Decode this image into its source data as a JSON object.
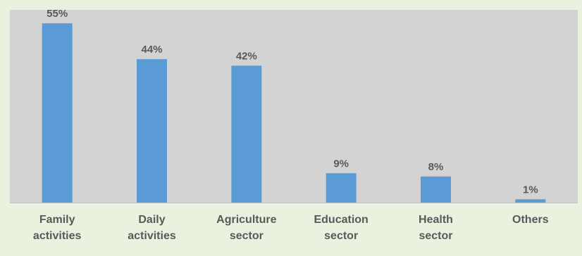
{
  "chart_data": {
    "type": "bar",
    "categories": [
      [
        "Family",
        "activities"
      ],
      [
        "Daily",
        "activities"
      ],
      [
        "Agriculture",
        "sector"
      ],
      [
        "Education",
        "sector"
      ],
      [
        "Health",
        "sector"
      ],
      [
        "Others"
      ]
    ],
    "values": [
      55,
      44,
      42,
      9,
      8,
      1
    ],
    "data_labels": [
      "55%",
      "44%",
      "42%",
      "9%",
      "8%",
      "1%"
    ],
    "ylim": [
      0,
      60
    ],
    "grid": false,
    "legend": "none",
    "colors": {
      "bar": "#5b9bd5",
      "plot_background": "#d3d3d3",
      "page_background": "#e9f1df",
      "baseline": "#bfbfbf",
      "text": "#595959"
    }
  }
}
